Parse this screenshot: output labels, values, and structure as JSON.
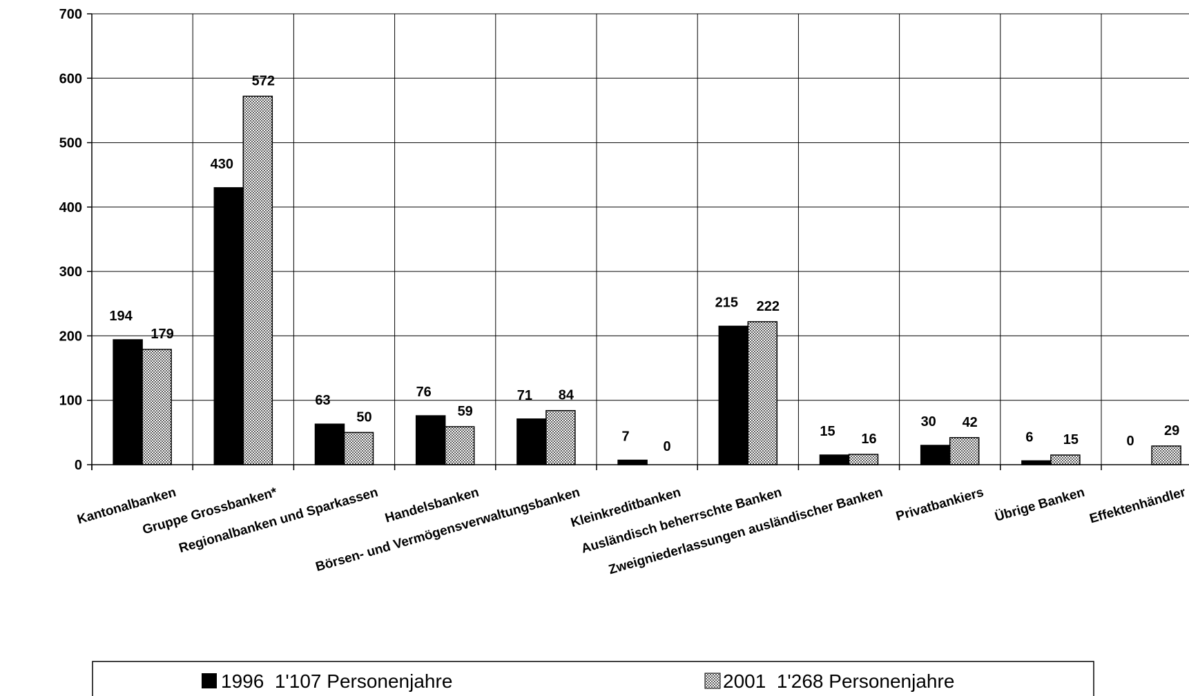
{
  "chart_data": {
    "type": "bar",
    "categories": [
      "Kantonalbanken",
      "Gruppe Grossbanken*",
      "Regionalbanken und Sparkassen",
      "Handelsbanken",
      "Börsen- und Vermögensverwaltungsbanken",
      "Kleinkreditbanken",
      "Ausländisch beherrschte Banken",
      "Zweigniederlassungen ausländischer Banken",
      "Privatbankiers",
      "Übrige Banken",
      "Effektenhändler"
    ],
    "series": [
      {
        "name": "1996  1'107 Personenjahre",
        "values": [
          194,
          430,
          63,
          76,
          71,
          7,
          215,
          15,
          30,
          6,
          0
        ],
        "color": "#000000",
        "fill": "solid"
      },
      {
        "name": "2001  1'268 Personenjahre",
        "values": [
          179,
          572,
          50,
          59,
          84,
          0,
          222,
          16,
          42,
          15,
          29
        ],
        "color": "#888888",
        "fill": "checker"
      }
    ],
    "yticks": [
      "0",
      "100",
      "200",
      "300",
      "400",
      "500",
      "600",
      "700"
    ],
    "ylim": [
      0,
      700
    ],
    "grid": true,
    "legend_position": "bottom"
  }
}
